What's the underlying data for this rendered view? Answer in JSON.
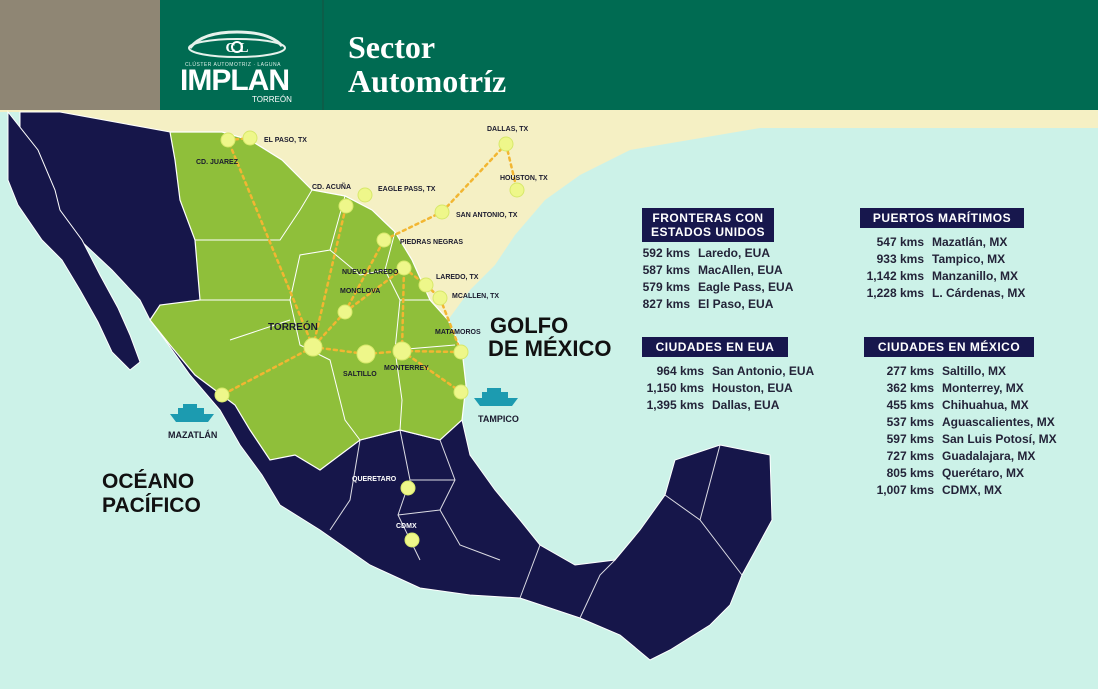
{
  "header": {
    "title_line1": "Sector",
    "title_line2": "Automotríz",
    "logo_tagline": "CLÚSTER AUTOMOTRIZ · LAGUNA",
    "org_name": "IMPLAN",
    "org_city": "TORREÓN",
    "colors": {
      "banner": "#006b52",
      "gray_block": "#8f8674"
    }
  },
  "map": {
    "sea_labels": {
      "gulf_line1": "GOLFO",
      "gulf_line2": "DE MÉXICO",
      "pacific_line1": "OCÉANO",
      "pacific_line2": "PACÍFICO"
    },
    "cities": {
      "el_paso": "EL PASO, TX",
      "cd_juarez": "CD. JUAREZ",
      "dallas": "DALLAS, TX",
      "houston": "HOUSTON, TX",
      "cd_acuna": "CD. ACUÑA",
      "eagle_pass": "EAGLE PASS, TX",
      "san_antonio": "SAN ANTONIO, TX",
      "piedras_negras": "PIEDRAS NEGRAS",
      "nuevo_laredo": "NUEVO LAREDO",
      "laredo": "LAREDO, TX",
      "mcallen": "MCALLEN, TX",
      "monclova": "MONCLOVA",
      "torreon": "TORREÓN",
      "matamoros": "MATAMOROS",
      "saltillo": "SALTILLO",
      "monterrey": "MONTERREY",
      "tampico": "TAMPICO",
      "mazatlan": "MAZATLÁN",
      "queretaro": "QUERETARO",
      "cdmx": "CDMX"
    },
    "colors": {
      "usa": "#f5f0c4",
      "sea": "#ccf2e8",
      "mexico": "#16164a",
      "north_region": "#8fbf3a",
      "route": "#f2b632",
      "city_dot": "#eef78a"
    }
  },
  "panels": {
    "fronteras": {
      "title": "FRONTERAS CON ESTADOS UNIDOS",
      "rows": [
        {
          "km": "592 kms",
          "place": "Laredo, EUA"
        },
        {
          "km": "587 kms",
          "place": "MacAllen, EUA"
        },
        {
          "km": "579 kms",
          "place": "Eagle Pass, EUA"
        },
        {
          "km": "827 kms",
          "place": "El Paso, EUA"
        }
      ]
    },
    "ciudades_eua": {
      "title": "CIUDADES EN EUA",
      "rows": [
        {
          "km": "964 kms",
          "place": "San Antonio, EUA"
        },
        {
          "km": "1,150 kms",
          "place": "Houston, EUA"
        },
        {
          "km": "1,395 kms",
          "place": "Dallas, EUA"
        }
      ]
    },
    "puertos": {
      "title": "PUERTOS MARÍTIMOS",
      "rows": [
        {
          "km": "547 kms",
          "place": "Mazatlán, MX"
        },
        {
          "km": "933 kms",
          "place": "Tampico, MX"
        },
        {
          "km": "1,142 kms",
          "place": "Manzanillo, MX"
        },
        {
          "km": "1,228 kms",
          "place": "L. Cárdenas, MX"
        }
      ]
    },
    "ciudades_mx": {
      "title": "CIUDADES EN MÉXICO",
      "rows": [
        {
          "km": "277 kms",
          "place": "Saltillo, MX"
        },
        {
          "km": "362 kms",
          "place": "Monterrey, MX"
        },
        {
          "km": "455 kms",
          "place": "Chihuahua, MX"
        },
        {
          "km": "537 kms",
          "place": "Aguascalientes, MX"
        },
        {
          "km": "597 kms",
          "place": "San Luis Potosí, MX"
        },
        {
          "km": "727 kms",
          "place": "Guadalajara, MX"
        },
        {
          "km": "805 kms",
          "place": "Querétaro, MX"
        },
        {
          "km": "1,007 kms",
          "place": "CDMX, MX"
        }
      ]
    }
  }
}
